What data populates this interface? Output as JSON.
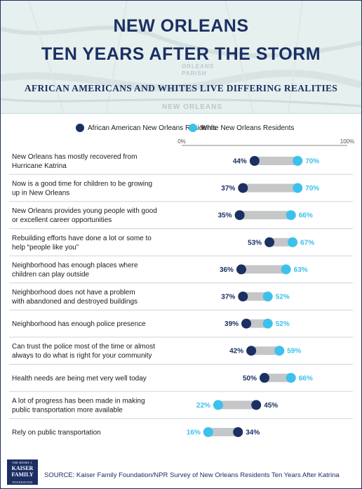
{
  "header": {
    "title_line1": "NEW ORLEANS",
    "title_line2": "TEN YEARS AFTER THE STORM",
    "subtitle": "AFRICAN AMERICANS AND WHITES LIVE DIFFERING REALITIES",
    "map_label_1": "ORLEANS",
    "map_label_2": "PARISH",
    "map_label_3": "NEW ORLEANS"
  },
  "legend": {
    "african_american": "African American New Orleans Residents",
    "white": "White New Orleans Residents"
  },
  "colors": {
    "african_american": "#1b2f63",
    "white": "#3cc1ec",
    "bar": "#c4c6c8"
  },
  "chart_data": {
    "type": "dot-range",
    "xlim": [
      0,
      100
    ],
    "x_ticks": [
      "0%",
      "100%"
    ],
    "series": [
      {
        "name": "African American New Orleans Residents"
      },
      {
        "name": "White New Orleans Residents"
      }
    ],
    "rows": [
      {
        "label": [
          "New Orleans has mostly recovered from",
          "Hurricane Katrina"
        ],
        "african_american": 44,
        "white": 70
      },
      {
        "label": [
          "Now is a good time for children to be growing",
          "up in New Orleans"
        ],
        "african_american": 37,
        "white": 70
      },
      {
        "label": [
          "New Orleans provides young people with good",
          "or excellent career opportunities"
        ],
        "african_american": 35,
        "white": 66
      },
      {
        "label": [
          "Rebuilding efforts have done a lot or some to",
          "help “people like you”"
        ],
        "african_american": 53,
        "white": 67
      },
      {
        "label": [
          "Neighborhood has enough places where",
          "children can play outside"
        ],
        "african_american": 36,
        "white": 63
      },
      {
        "label": [
          "Neighborhood does not have a problem",
          "with abandoned and destroyed buildings"
        ],
        "african_american": 37,
        "white": 52
      },
      {
        "label": [
          "Neighborhood has enough police presence"
        ],
        "african_american": 39,
        "white": 52
      },
      {
        "label": [
          "Can trust the police most of the time or almost",
          "always to do what is right for your community"
        ],
        "african_american": 42,
        "white": 59
      },
      {
        "label": [
          "Health needs are being met very well today"
        ],
        "african_american": 50,
        "white": 66
      },
      {
        "label": [
          "A lot of progress has been made in making",
          "public transportation more available"
        ],
        "african_american": 45,
        "white": 22
      },
      {
        "label": [
          "Rely on public transportation"
        ],
        "african_american": 34,
        "white": 16
      }
    ]
  },
  "footer": {
    "logo_line1": "THE HENRY J.",
    "logo_line2": "KAISER",
    "logo_line3": "FAMILY",
    "logo_line4": "FOUNDATION",
    "source": "SOURCE:  Kaiser Family Foundation/NPR Survey of New Orleans Residents Ten Years After Katrina"
  }
}
